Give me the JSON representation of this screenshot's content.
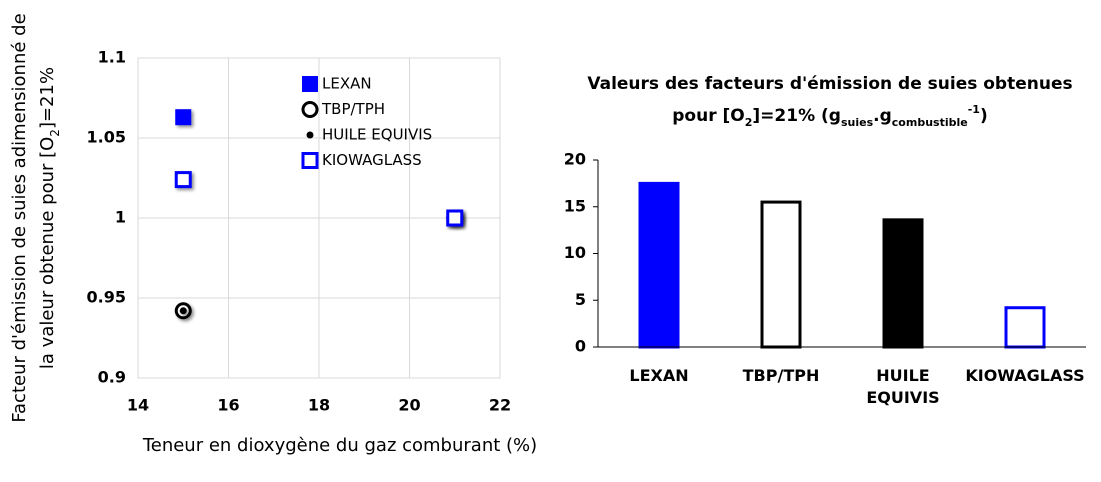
{
  "chart_data": [
    {
      "type": "scatter",
      "ylabel": {
        "line1": "Facteur d'émission de suies adimensionné de",
        "line2": [
          "la valeur obtenue pour [O",
          "2",
          "]=21%"
        ]
      },
      "xlabel": "Teneur en dioxygène du gaz comburant (%)",
      "xlim": [
        14,
        22
      ],
      "xticks": [
        14,
        16,
        18,
        20,
        22
      ],
      "ylim": [
        0.9,
        1.1
      ],
      "yticks": [
        0.9,
        0.95,
        1,
        1.05,
        1.1
      ],
      "grid": true,
      "legend": "upper right",
      "series": [
        {
          "name": "LEXAN",
          "color": "#0000ff",
          "marker": "filled-square",
          "x": [
            15,
            21
          ],
          "values": [
            1.063,
            1
          ]
        },
        {
          "name": "TBP/TPH",
          "color": "#000000",
          "marker": "ring",
          "x": [
            15,
            21
          ],
          "values": [
            0.942,
            1
          ]
        },
        {
          "name": "HUILE EQUIVIS",
          "color": "#000000",
          "marker": "dot",
          "x": [
            15,
            21
          ],
          "values": [
            0.942,
            1
          ]
        },
        {
          "name": "KIOWAGLASS",
          "color": "#0000ff",
          "marker": "hollow-square",
          "x": [
            15,
            21
          ],
          "values": [
            1.024,
            1
          ]
        }
      ]
    },
    {
      "type": "bar",
      "title": [
        "Valeurs des facteurs d'émission de suies obtenues",
        [
          "pour [O",
          "2",
          "]=21% (g",
          "suies",
          ".g",
          "combustible",
          "-1",
          ")"
        ]
      ],
      "categories": [
        "LEXAN",
        "TBP/TPH",
        "HUILE EQUIVIS",
        "KIOWAGLASS"
      ],
      "values": [
        17.5,
        15.5,
        13.6,
        4.2
      ],
      "colors": [
        "#0000ff",
        "#ffffff",
        "#000000",
        "#ffffff"
      ],
      "edgecolors": [
        "#0000ff",
        "#000000",
        "#000000",
        "#0000ff"
      ],
      "ylim": [
        0,
        20
      ],
      "yticks": [
        0,
        5,
        10,
        15,
        20
      ]
    }
  ]
}
